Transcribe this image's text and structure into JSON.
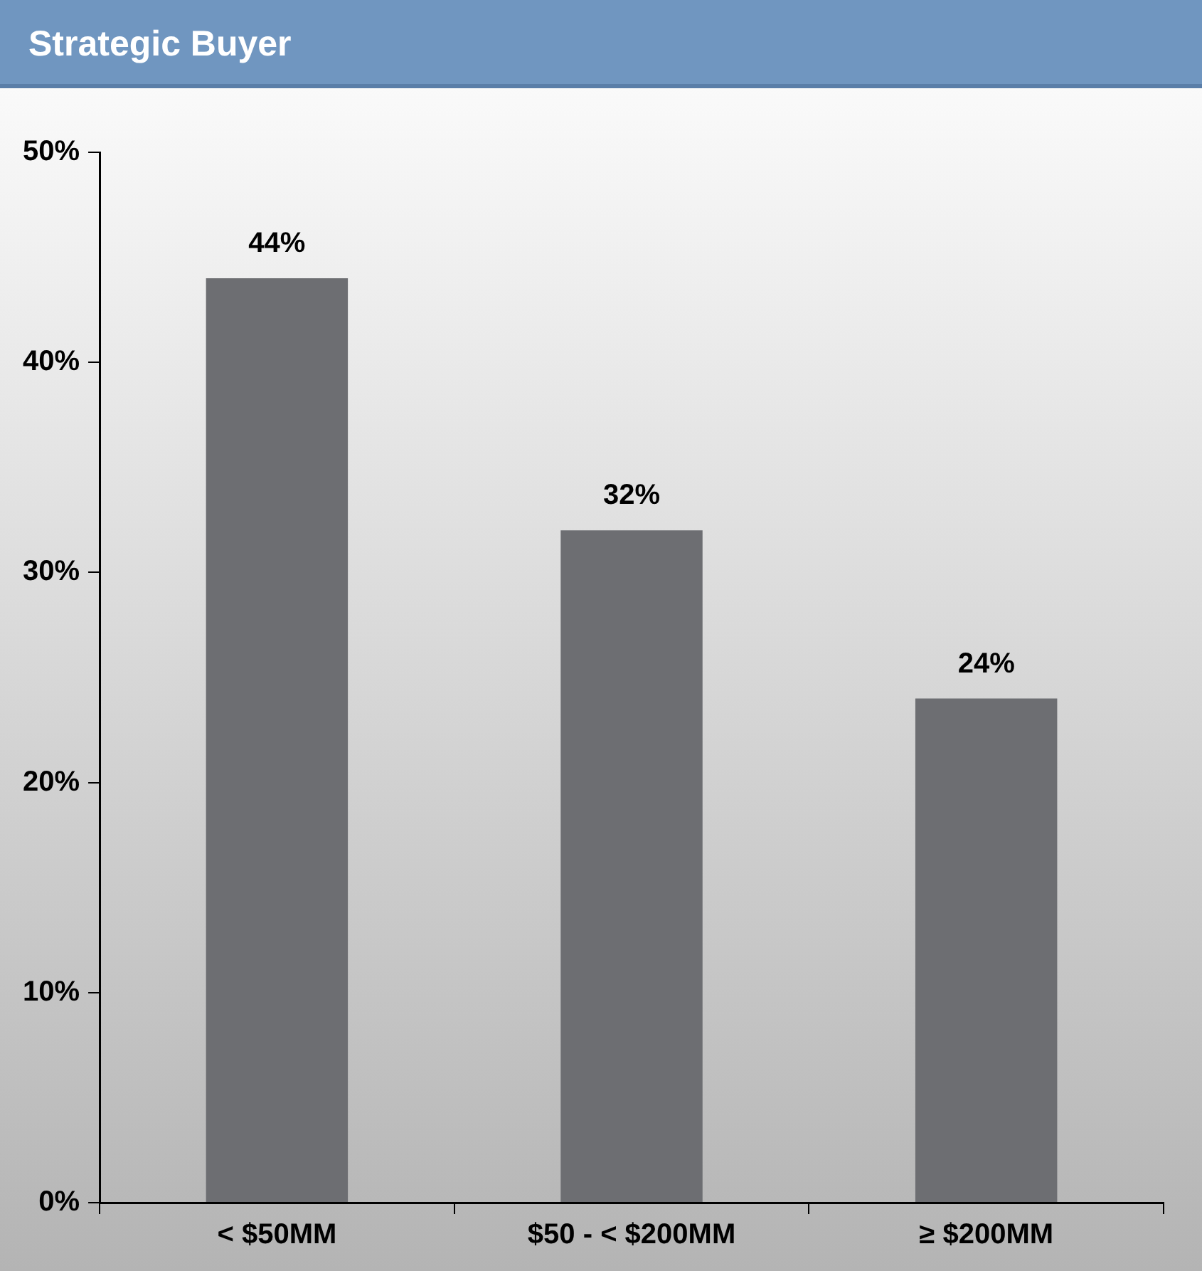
{
  "chart_data": {
    "type": "bar",
    "title": "Strategic Buyer",
    "categories": [
      "< $50MM",
      "$50 - < $200MM",
      "≥ $200MM"
    ],
    "values": [
      44,
      32,
      24
    ],
    "color": "#6d6e72",
    "value_labels": [
      "44%",
      "32%",
      "24%"
    ],
    "ylim": [
      0,
      50
    ],
    "yticks": [
      {
        "value": 0,
        "label": "0%"
      },
      {
        "value": 10,
        "label": "10%"
      },
      {
        "value": 20,
        "label": "20%"
      },
      {
        "value": 30,
        "label": "30%"
      },
      {
        "value": 40,
        "label": "40%"
      },
      {
        "value": 50,
        "label": "50%"
      }
    ],
    "grid": false,
    "legend": false
  }
}
